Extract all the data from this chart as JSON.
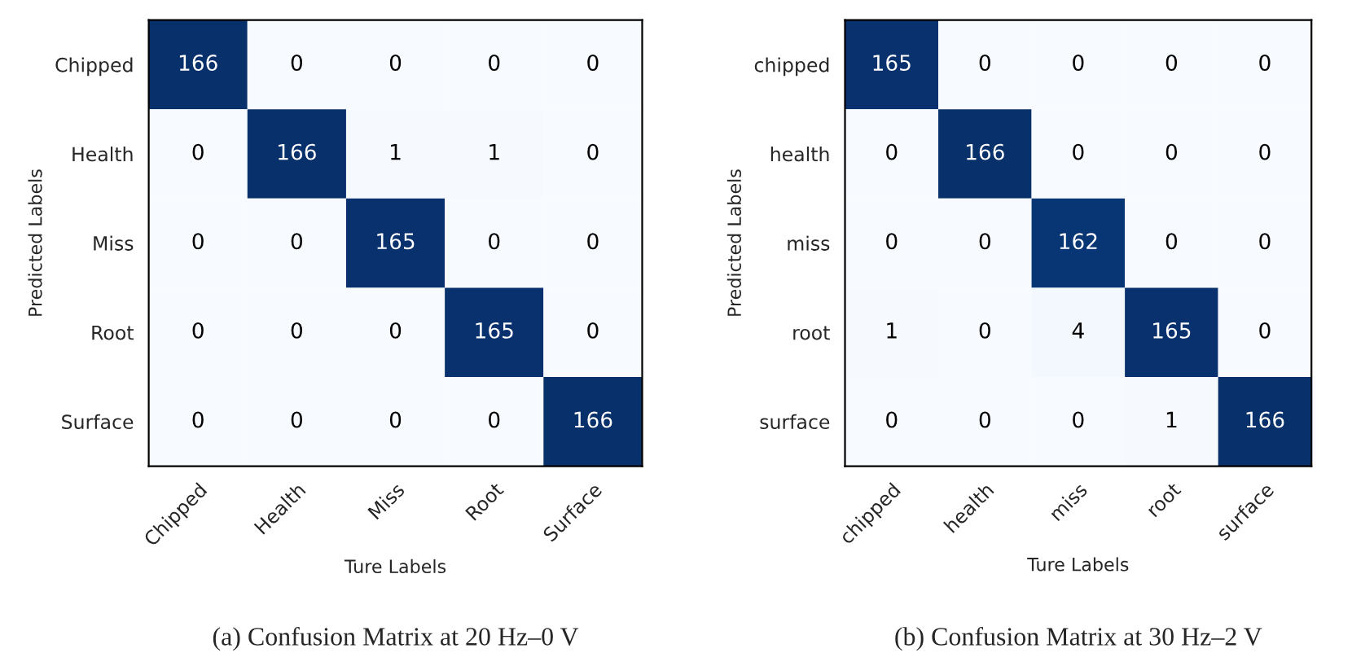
{
  "chart_data": [
    {
      "type": "heatmap",
      "data_labels": true,
      "title": "(a) Confusion Matrix at 20 Hz–0 V",
      "xlabel": "Ture Labels",
      "ylabel": "Predicted Labels",
      "categories": [
        "Chipped",
        "Health",
        "Miss",
        "Root",
        "Surface"
      ],
      "y_categories": [
        "Chipped",
        "Health",
        "Miss",
        "Root",
        "Surface"
      ],
      "cells": [
        [
          166,
          0,
          0,
          0,
          0
        ],
        [
          0,
          166,
          1,
          1,
          0
        ],
        [
          0,
          0,
          165,
          0,
          0
        ],
        [
          0,
          0,
          0,
          165,
          0
        ],
        [
          0,
          0,
          0,
          0,
          166
        ]
      ]
    },
    {
      "type": "heatmap",
      "data_labels": true,
      "title": "(b) Confusion Matrix at 30 Hz–2 V",
      "xlabel": "Ture Labels",
      "ylabel": "Predicted Labels",
      "categories": [
        "chipped",
        "health",
        "miss",
        "root",
        "surface"
      ],
      "y_categories": [
        "chipped",
        "health",
        "miss",
        "root",
        "surface"
      ],
      "cells": [
        [
          165,
          0,
          0,
          0,
          0
        ],
        [
          0,
          166,
          0,
          0,
          0
        ],
        [
          0,
          0,
          162,
          0,
          0
        ],
        [
          1,
          0,
          4,
          165,
          0
        ],
        [
          0,
          0,
          0,
          1,
          166
        ]
      ]
    }
  ]
}
